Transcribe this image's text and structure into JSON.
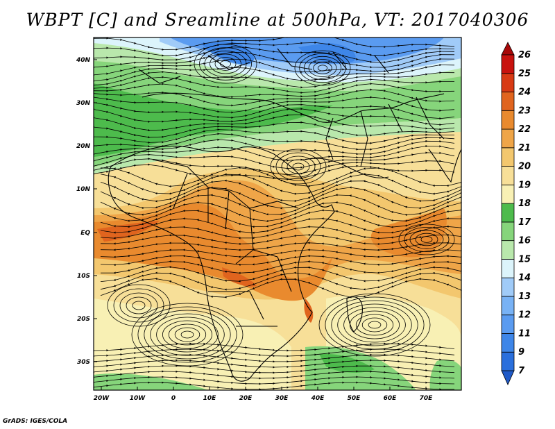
{
  "title": "WBPT [C] and Sreamline at 500hPa, VT: 2017040306",
  "credit": "GrADS: IGES/COLA",
  "map": {
    "lat_labels": [
      "40N",
      "30N",
      "20N",
      "10N",
      "EQ",
      "10S",
      "20S",
      "30S"
    ],
    "lon_labels": [
      "20W",
      "10W",
      "0",
      "10E",
      "20E",
      "30E",
      "40E",
      "50E",
      "60E",
      "70E"
    ]
  },
  "colorbar": {
    "levels": [
      "7",
      "9",
      "11",
      "12",
      "13",
      "14",
      "15",
      "16",
      "17",
      "18",
      "19",
      "20",
      "21",
      "22",
      "23",
      "24",
      "25",
      "26"
    ],
    "colors": [
      "#2a6fdc",
      "#3e86e8",
      "#5a9bf0",
      "#78b2f5",
      "#a0cbf8",
      "#dcf4fb",
      "#b9e8ac",
      "#86d57b",
      "#4dbb4c",
      "#f8f0b4",
      "#f7df98",
      "#f3c76e",
      "#efa548",
      "#e98a2e",
      "#e0641e",
      "#d83a14",
      "#c8120e"
    ],
    "top_color": "#a80808",
    "bottom_color": "#1f5ac8"
  }
}
